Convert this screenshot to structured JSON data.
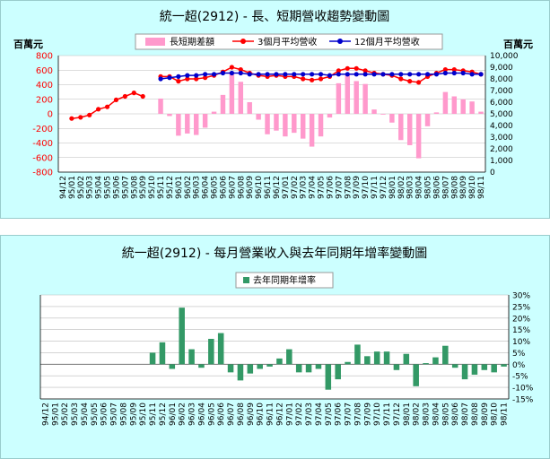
{
  "chart_data": [
    {
      "type": "bar+line",
      "title": "統一超(2912) -  長、短期營收趨勢變動圖",
      "ylabel_left": "百萬元",
      "ylabel_right": "百萬元",
      "ylim_left": [
        -800,
        800
      ],
      "yticks_left": [
        "800",
        "600",
        "400",
        "200",
        "0",
        "-200",
        "-400",
        "-600",
        "-800"
      ],
      "ylim_right": [
        0,
        10000
      ],
      "yticks_right": [
        "10,000",
        "9,000",
        "8,000",
        "7,000",
        "6,000",
        "5,000",
        "4,000",
        "3,000",
        "2,000",
        "1,000",
        "0"
      ],
      "legend": [
        "長短期差額",
        "3個月平均營收",
        "12個月平均營收"
      ],
      "colors": {
        "bar": "#ff99cc",
        "ma3": "#ff0000",
        "ma12": "#0000cc"
      },
      "categories": [
        "94/12",
        "95/01",
        "95/02",
        "95/03",
        "95/04",
        "95/05",
        "95/06",
        "95/07",
        "95/08",
        "95/09",
        "95/10",
        "95/11",
        "95/12",
        "96/01",
        "96/02",
        "96/03",
        "96/04",
        "96/05",
        "96/06",
        "96/07",
        "96/08",
        "96/09",
        "96/10",
        "96/11",
        "96/12",
        "97/01",
        "97/02",
        "97/03",
        "97/04",
        "97/05",
        "97/06",
        "97/07",
        "97/08",
        "97/09",
        "97/10",
        "97/11",
        "97/12",
        "98/01",
        "98/02",
        "98/03",
        "98/04",
        "98/05",
        "98/06",
        "98/07",
        "98/08",
        "98/09",
        "98/10",
        "98/11"
      ],
      "series": [
        {
          "name": "長短期差額",
          "values": [
            null,
            null,
            null,
            null,
            null,
            null,
            null,
            null,
            null,
            null,
            null,
            210,
            -30,
            -300,
            -270,
            -290,
            -190,
            30,
            260,
            580,
            440,
            160,
            -80,
            -280,
            -230,
            -310,
            -260,
            -340,
            -450,
            -310,
            -50,
            420,
            530,
            450,
            410,
            60,
            -10,
            -120,
            -360,
            -430,
            -610,
            -170,
            20,
            300,
            240,
            200,
            170,
            30
          ]
        },
        {
          "name": "3個月平均營收",
          "values": [
            null,
            4600,
            4700,
            4900,
            5400,
            5600,
            6200,
            6500,
            6800,
            6500,
            null,
            8200,
            8200,
            7800,
            8000,
            8000,
            8100,
            8300,
            8600,
            9000,
            8800,
            8500,
            8300,
            8200,
            8300,
            8200,
            8200,
            8000,
            7900,
            8000,
            8200,
            8700,
            8900,
            8900,
            8700,
            8500,
            8400,
            8300,
            8000,
            7800,
            7700,
            8200,
            8500,
            8800,
            8800,
            8700,
            8600,
            8400
          ]
        },
        {
          "name": "12個月平均營收",
          "values": [
            null,
            null,
            null,
            null,
            null,
            null,
            null,
            null,
            null,
            null,
            null,
            8000,
            8100,
            8200,
            8300,
            8300,
            8400,
            8400,
            8500,
            8500,
            8500,
            8400,
            8400,
            8400,
            8400,
            8400,
            8400,
            8400,
            8400,
            8400,
            8300,
            8400,
            8400,
            8400,
            8400,
            8400,
            8400,
            8400,
            8400,
            8400,
            8400,
            8400,
            8400,
            8500,
            8500,
            8500,
            8400,
            8400
          ]
        }
      ]
    },
    {
      "type": "bar",
      "title": "統一超(2912) -  每月營業收入與去年同期年增率變動圖",
      "ylim": [
        -15,
        30
      ],
      "yticks": [
        "30%",
        "25%",
        "20%",
        "15%",
        "10%",
        "5%",
        "0%",
        "-5%",
        "-10%",
        "-15%"
      ],
      "legend": [
        "去年同期年增率"
      ],
      "colors": {
        "bar": "#339966"
      },
      "categories": [
        "94/12",
        "95/01",
        "95/02",
        "95/03",
        "95/04",
        "95/05",
        "95/06",
        "95/07",
        "95/08",
        "95/09",
        "95/10",
        "95/11",
        "95/12",
        "96/01",
        "96/02",
        "96/03",
        "96/04",
        "96/05",
        "96/06",
        "96/07",
        "96/08",
        "96/09",
        "96/10",
        "96/11",
        "96/12",
        "97/01",
        "97/02",
        "97/03",
        "97/04",
        "97/05",
        "97/06",
        "97/07",
        "97/08",
        "97/09",
        "97/10",
        "97/11",
        "97/12",
        "98/01",
        "98/02",
        "98/03",
        "98/04",
        "98/05",
        "98/06",
        "98/07",
        "98/08",
        "98/09",
        "98/10",
        "98/11"
      ],
      "values": [
        null,
        null,
        null,
        null,
        null,
        null,
        null,
        null,
        null,
        null,
        null,
        5,
        9.5,
        -2,
        24.5,
        6.5,
        -1.5,
        11,
        13.5,
        -3.5,
        -7,
        -4,
        -2,
        -1,
        2.5,
        6.5,
        -3.5,
        -3.5,
        -2,
        -11,
        -6.5,
        1,
        8.5,
        3.5,
        5.5,
        5.5,
        -2.5,
        4.5,
        -9.5,
        0.5,
        3,
        8,
        -1.5,
        -6.5,
        -4.5,
        -2.5,
        -3.5,
        -1
      ]
    }
  ]
}
